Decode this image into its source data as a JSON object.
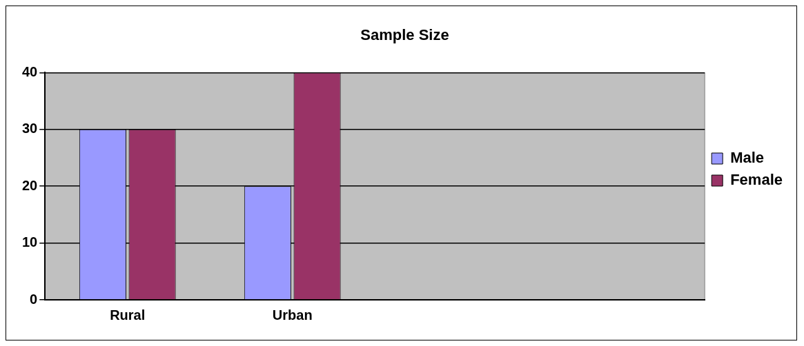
{
  "chart_data": {
    "type": "bar",
    "title": "Sample Size",
    "categories": [
      "Rural",
      "Urban",
      null,
      null
    ],
    "series": [
      {
        "name": "Male",
        "color": "#9999ff",
        "values": [
          30,
          20,
          null,
          null
        ]
      },
      {
        "name": "Female",
        "color": "#993366",
        "values": [
          30,
          40,
          null,
          null
        ]
      }
    ],
    "ylim": [
      0,
      40
    ],
    "yticks": [
      0,
      10,
      20,
      30,
      40
    ],
    "grid": "y",
    "legend": "right"
  }
}
